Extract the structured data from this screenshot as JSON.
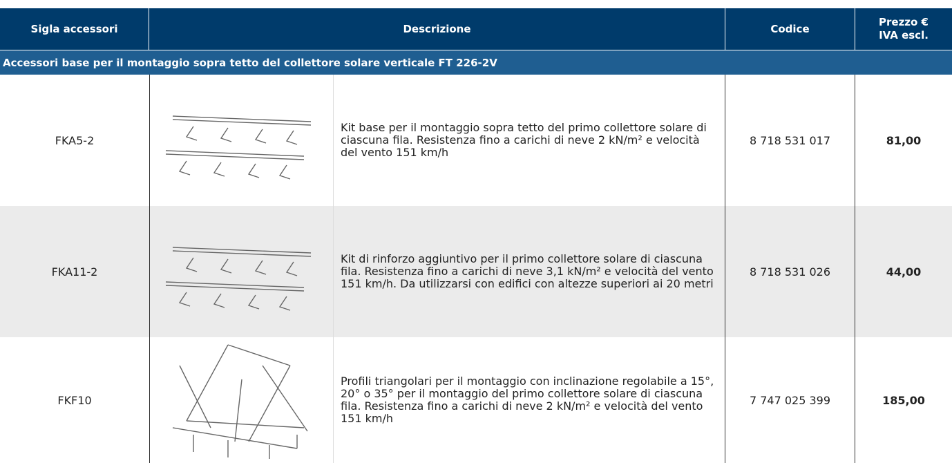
{
  "table": {
    "header": [
      "Sigla accessori",
      "Descrizione",
      "Codice",
      [
        "Prezzo €",
        "IVA escl."
      ]
    ],
    "section": "Accessori base per il montaggio sopra tetto del collettore solare verticale FT 226-2V",
    "rows": [
      {
        "sigla": "FKA5-2",
        "descrizione": "Kit base per il montaggio sopra tetto del primo collettore solare di ciascuna fila. Resistenza fino a carichi di neve 2 kN/m² e velocità del vento 151 km/h",
        "codice": "8 718 531 017",
        "prezzo": "81,00"
      },
      {
        "sigla": "FKA11-2",
        "descrizione": "Kit di rinforzo aggiuntivo per il primo collettore solare di ciascuna fila. Resistenza fino a carichi di neve 3,1 kN/m² e velocità del vento 151 km/h. Da utilizzarsi con edifici con altezze superiori ai 20 metri",
        "codice": "8 718 531 026",
        "prezzo": "44,00"
      },
      {
        "sigla": "FKF10",
        "descrizione": "Profili triangolari per il montaggio con inclinazione regolabile a 15°, 20° o 35° per il montaggio del primo collettore solare di ciascuna fila. Resistenza fino a carichi di neve 2 kN/m² e velocità del vento 151 km/h",
        "codice": "7 747 025 399",
        "prezzo": "185,00"
      }
    ]
  }
}
